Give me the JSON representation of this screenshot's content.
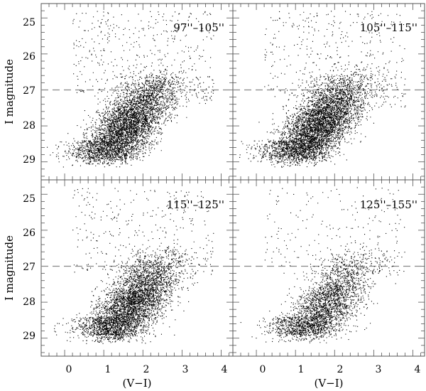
{
  "chart_data": [
    {
      "type": "scatter",
      "panel_label": "97''–105''",
      "xlabel": "",
      "ylabel": "I magnitude",
      "xlim": [
        -0.6,
        4.3
      ],
      "ylim": [
        29.5,
        24.6
      ],
      "y_inverted": true,
      "reference_line": {
        "y": 27,
        "style": "dashed"
      },
      "points": {
        "description": "dense cloud",
        "count_estimate": 5200,
        "x_range": [
          0.3,
          3.9
        ],
        "y_range": [
          25.0,
          28.9
        ],
        "core": {
          "x": 1.6,
          "y": 28.0
        }
      }
    },
    {
      "type": "scatter",
      "panel_label": "105''–115''",
      "xlabel": "",
      "ylabel": "",
      "xlim": [
        -0.6,
        4.3
      ],
      "ylim": [
        29.5,
        24.6
      ],
      "y_inverted": true,
      "reference_line": {
        "y": 27,
        "style": "dashed"
      },
      "points": {
        "description": "dense cloud",
        "count_estimate": 5600,
        "x_range": [
          0.3,
          3.9
        ],
        "y_range": [
          24.7,
          28.9
        ],
        "core": {
          "x": 1.6,
          "y": 28.0
        }
      }
    },
    {
      "type": "scatter",
      "panel_label": "115''–125''",
      "xlabel": "(V−I)",
      "ylabel": "I magnitude",
      "xlim": [
        -0.6,
        4.3
      ],
      "ylim": [
        29.5,
        24.6
      ],
      "y_inverted": true,
      "reference_line": {
        "y": 27,
        "style": "dashed"
      },
      "points": {
        "description": "dense cloud",
        "count_estimate": 4800,
        "x_range": [
          0.3,
          3.9
        ],
        "y_range": [
          24.7,
          29.0
        ],
        "core": {
          "x": 1.7,
          "y": 28.1
        }
      }
    },
    {
      "type": "scatter",
      "panel_label": "125''–155''",
      "xlabel": "(V−I)",
      "ylabel": "",
      "xlim": [
        -0.6,
        4.3
      ],
      "ylim": [
        29.5,
        24.6
      ],
      "y_inverted": true,
      "reference_line": {
        "y": 27,
        "style": "dashed"
      },
      "points": {
        "description": "dense cloud",
        "count_estimate": 3200,
        "x_range": [
          0.3,
          3.9
        ],
        "y_range": [
          25.0,
          29.0
        ],
        "core": {
          "x": 1.7,
          "y": 28.2
        }
      }
    }
  ],
  "axes": {
    "x_ticks": [
      "0",
      "1",
      "2",
      "3",
      "4"
    ],
    "y_ticks": [
      "25",
      "26",
      "27",
      "28",
      "29"
    ]
  },
  "colors": {
    "points": "#000000",
    "frame": "#555555",
    "dashed_line": "#888888"
  }
}
